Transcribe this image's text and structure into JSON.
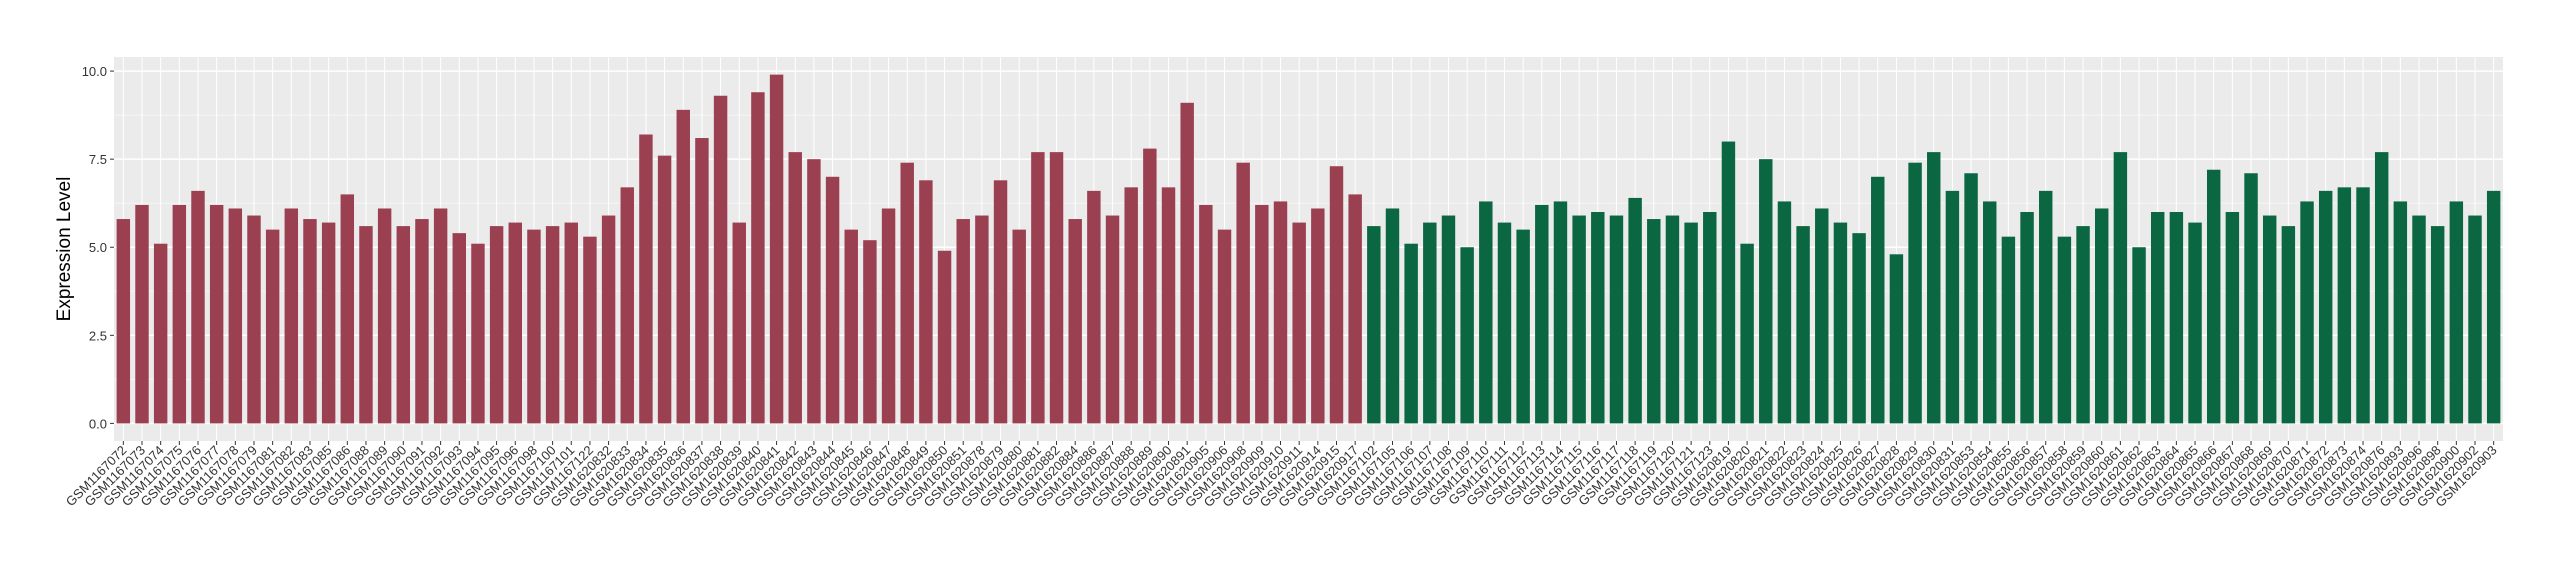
{
  "chart_data": {
    "type": "bar",
    "y_label": "Expression Level",
    "ylim": [
      -0.5,
      10.4
    ],
    "yticks": [
      {
        "value": 0,
        "label": "0.0"
      },
      {
        "value": 2.5,
        "label": "2.5"
      },
      {
        "value": 5,
        "label": "5.0"
      },
      {
        "value": 7.5,
        "label": "7.5"
      },
      {
        "value": 10,
        "label": "10.0"
      }
    ],
    "grid": true,
    "groups": [
      {
        "color": "#9b4050",
        "categories": [
          "GSM1167072",
          "GSM1167073",
          "GSM1167074",
          "GSM1167075",
          "GSM1167076",
          "GSM1167077",
          "GSM1167078",
          "GSM1167079",
          "GSM1167081",
          "GSM1167082",
          "GSM1167083",
          "GSM1167085",
          "GSM1167086",
          "GSM1167088",
          "GSM1167089",
          "GSM1167090",
          "GSM1167091",
          "GSM1167092",
          "GSM1167093",
          "GSM1167094",
          "GSM1167095",
          "GSM1167096",
          "GSM1167098",
          "GSM1167100",
          "GSM1167101",
          "GSM1167122",
          "GSM1620832",
          "GSM1620833",
          "GSM1620834",
          "GSM1620835",
          "GSM1620836",
          "GSM1620837",
          "GSM1620838",
          "GSM1620839",
          "GSM1620840",
          "GSM1620841",
          "GSM1620842",
          "GSM1620843",
          "GSM1620844",
          "GSM1620845",
          "GSM1620846",
          "GSM1620847",
          "GSM1620848",
          "GSM1620849",
          "GSM1620850",
          "GSM1620851",
          "GSM1620878",
          "GSM1620879",
          "GSM1620880",
          "GSM1620881",
          "GSM1620882",
          "GSM1620884",
          "GSM1620886",
          "GSM1620887",
          "GSM1620888",
          "GSM1620889",
          "GSM1620890",
          "GSM1620891",
          "GSM1620905",
          "GSM1620906",
          "GSM1620908",
          "GSM1620909",
          "GSM1620910",
          "GSM1620911",
          "GSM1620914",
          "GSM1620915",
          "GSM1620917"
        ],
        "values": [
          5.8,
          6.2,
          5.1,
          6.2,
          6.6,
          6.2,
          6.1,
          5.9,
          5.5,
          6.1,
          5.8,
          5.7,
          6.5,
          5.6,
          6.1,
          5.6,
          5.8,
          6.1,
          5.4,
          5.1,
          5.6,
          5.7,
          5.5,
          5.6,
          5.7,
          5.3,
          5.9,
          6.7,
          8.2,
          7.6,
          8.9,
          8.1,
          9.3,
          5.7,
          9.4,
          9.9,
          7.7,
          7.5,
          7.0,
          5.5,
          5.2,
          6.1,
          7.4,
          6.9,
          4.9,
          5.8,
          5.9,
          6.9,
          5.5,
          7.7,
          7.7,
          5.8,
          6.6,
          5.9,
          6.7,
          7.8,
          6.7,
          9.1,
          6.2,
          5.5,
          7.4,
          6.2,
          6.3,
          5.7,
          6.1,
          7.3,
          6.5
        ]
      },
      {
        "color": "#0b6642",
        "categories": [
          "GSM1167102",
          "GSM1167105",
          "GSM1167106",
          "GSM1167107",
          "GSM1167108",
          "GSM1167109",
          "GSM1167110",
          "GSM1167111",
          "GSM1167112",
          "GSM1167113",
          "GSM1167114",
          "GSM1167115",
          "GSM1167116",
          "GSM1167117",
          "GSM1167118",
          "GSM1167119",
          "GSM1167120",
          "GSM1167121",
          "GSM1167123",
          "GSM1620819",
          "GSM1620820",
          "GSM1620821",
          "GSM1620822",
          "GSM1620823",
          "GSM1620824",
          "GSM1620825",
          "GSM1620826",
          "GSM1620827",
          "GSM1620828",
          "GSM1620829",
          "GSM1620830",
          "GSM1620831",
          "GSM1620853",
          "GSM1620854",
          "GSM1620855",
          "GSM1620856",
          "GSM1620857",
          "GSM1620858",
          "GSM1620859",
          "GSM1620860",
          "GSM1620861",
          "GSM1620862",
          "GSM1620863",
          "GSM1620864",
          "GSM1620865",
          "GSM1620866",
          "GSM1620867",
          "GSM1620868",
          "GSM1620869",
          "GSM1620870",
          "GSM1620871",
          "GSM1620872",
          "GSM1620873",
          "GSM1620874",
          "GSM1620876",
          "GSM1620893",
          "GSM1620896",
          "GSM1620898",
          "GSM1620900",
          "GSM1620902",
          "GSM1620903"
        ],
        "values": [
          5.6,
          6.1,
          5.1,
          5.7,
          5.9,
          5.0,
          6.3,
          5.7,
          5.5,
          6.2,
          6.3,
          5.9,
          6.0,
          5.9,
          6.4,
          5.8,
          5.9,
          5.7,
          6.0,
          8.0,
          5.1,
          7.5,
          6.3,
          5.6,
          6.1,
          5.7,
          5.4,
          7.0,
          4.8,
          7.4,
          7.7,
          6.6,
          7.1,
          6.3,
          5.3,
          6.0,
          6.6,
          5.3,
          5.6,
          6.1,
          7.7,
          5.0,
          6.0,
          6.0,
          5.7,
          7.2,
          6.0,
          7.1,
          5.9,
          5.6,
          6.3,
          6.6,
          6.7,
          6.7,
          7.7,
          6.3,
          5.9,
          5.6,
          6.3,
          5.9,
          6.6
        ]
      }
    ]
  }
}
